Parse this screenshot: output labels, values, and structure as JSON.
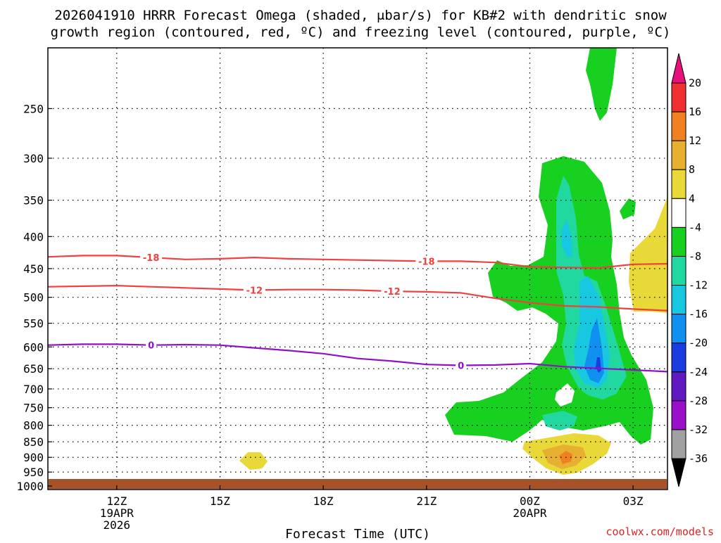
{
  "title": {
    "line1": "2026041910 HRRR Forecast Omega (shaded, μbar/s) for KB#2 with dendritic snow",
    "line2": "growth region (contoured, red, ºC) and freezing level (contoured, purple, ºC)"
  },
  "credit": "coolwx.com/models",
  "colors": {
    "dgz": "#f04040",
    "freezing": "#9010c8",
    "ground": "#a8522a",
    "levels": [
      "#000000",
      "#a0a0a0",
      "#9a10c8",
      "#6018c0",
      "#1a3ce0",
      "#1090f0",
      "#18c8e0",
      "#20d8a0",
      "#18d020",
      "#ffffff",
      "#e8d838",
      "#e8b030",
      "#f08020",
      "#f03030",
      "#e8107a"
    ]
  },
  "chart_data": {
    "type": "cross-section",
    "xlabel": "Forecast Time (UTC)",
    "ylabel": "",
    "x_ticks": [
      {
        "time": "12Z",
        "date": "19APR",
        "year": "2026"
      },
      {
        "time": "15Z",
        "date": "",
        "year": ""
      },
      {
        "time": "18Z",
        "date": "",
        "year": ""
      },
      {
        "time": "21Z",
        "date": "",
        "year": ""
      },
      {
        "time": "00Z",
        "date": "20APR",
        "year": ""
      },
      {
        "time": "03Z",
        "date": "",
        "year": ""
      }
    ],
    "x_tick_hours": [
      12,
      15,
      18,
      21,
      24,
      27
    ],
    "xlim_hours": [
      10,
      28
    ],
    "ylim_hpa": [
      1013,
      200
    ],
    "y_scale": "log",
    "y_ticks": [
      250,
      300,
      350,
      400,
      450,
      500,
      550,
      600,
      650,
      700,
      750,
      800,
      850,
      900,
      950,
      1000
    ],
    "grid": true,
    "colorbar": {
      "labels": [
        20,
        16,
        12,
        8,
        4,
        -4,
        -8,
        -12,
        -16,
        -20,
        -24,
        -28,
        -32,
        -36
      ],
      "units": "μbar/s",
      "extend": "both"
    },
    "contours": [
      {
        "name": "-18",
        "label": "-18",
        "color": "#f04040",
        "label_at_hours": [
          13.0,
          21.0
        ],
        "points": [
          [
            10,
            431
          ],
          [
            11,
            429
          ],
          [
            12,
            429
          ],
          [
            13,
            432
          ],
          [
            14,
            435
          ],
          [
            15,
            434
          ],
          [
            16,
            432
          ],
          [
            17,
            434
          ],
          [
            18,
            435
          ],
          [
            19,
            436
          ],
          [
            20,
            437
          ],
          [
            21,
            438
          ],
          [
            22,
            438
          ],
          [
            23,
            440
          ],
          [
            24,
            447
          ],
          [
            25,
            448
          ],
          [
            26,
            449
          ],
          [
            27,
            443
          ],
          [
            28,
            442
          ]
        ]
      },
      {
        "name": "-12",
        "label": "-12",
        "color": "#f04040",
        "label_at_hours": [
          16.0,
          20.0
        ],
        "points": [
          [
            10,
            481
          ],
          [
            11,
            480
          ],
          [
            12,
            479
          ],
          [
            13,
            481
          ],
          [
            14,
            483
          ],
          [
            15,
            485
          ],
          [
            16,
            487
          ],
          [
            17,
            486
          ],
          [
            18,
            486
          ],
          [
            19,
            487
          ],
          [
            20,
            489
          ],
          [
            21,
            490
          ],
          [
            22,
            492
          ],
          [
            23,
            502
          ],
          [
            24,
            510
          ],
          [
            25,
            516
          ],
          [
            26,
            518
          ],
          [
            27,
            522
          ],
          [
            28,
            525
          ]
        ]
      },
      {
        "name": "0",
        "label": "0",
        "color": "#9010c8",
        "label_at_hours": [
          13.0,
          22.0
        ],
        "points": [
          [
            10,
            596
          ],
          [
            11,
            594
          ],
          [
            12,
            594
          ],
          [
            13,
            596
          ],
          [
            14,
            595
          ],
          [
            15,
            596
          ],
          [
            16,
            602
          ],
          [
            17,
            608
          ],
          [
            18,
            615
          ],
          [
            19,
            626
          ],
          [
            20,
            632
          ],
          [
            21,
            640
          ],
          [
            22,
            642
          ],
          [
            23,
            641
          ],
          [
            24,
            638
          ],
          [
            25,
            645
          ],
          [
            26,
            649
          ],
          [
            27,
            653
          ],
          [
            28,
            657
          ]
        ]
      }
    ]
  }
}
